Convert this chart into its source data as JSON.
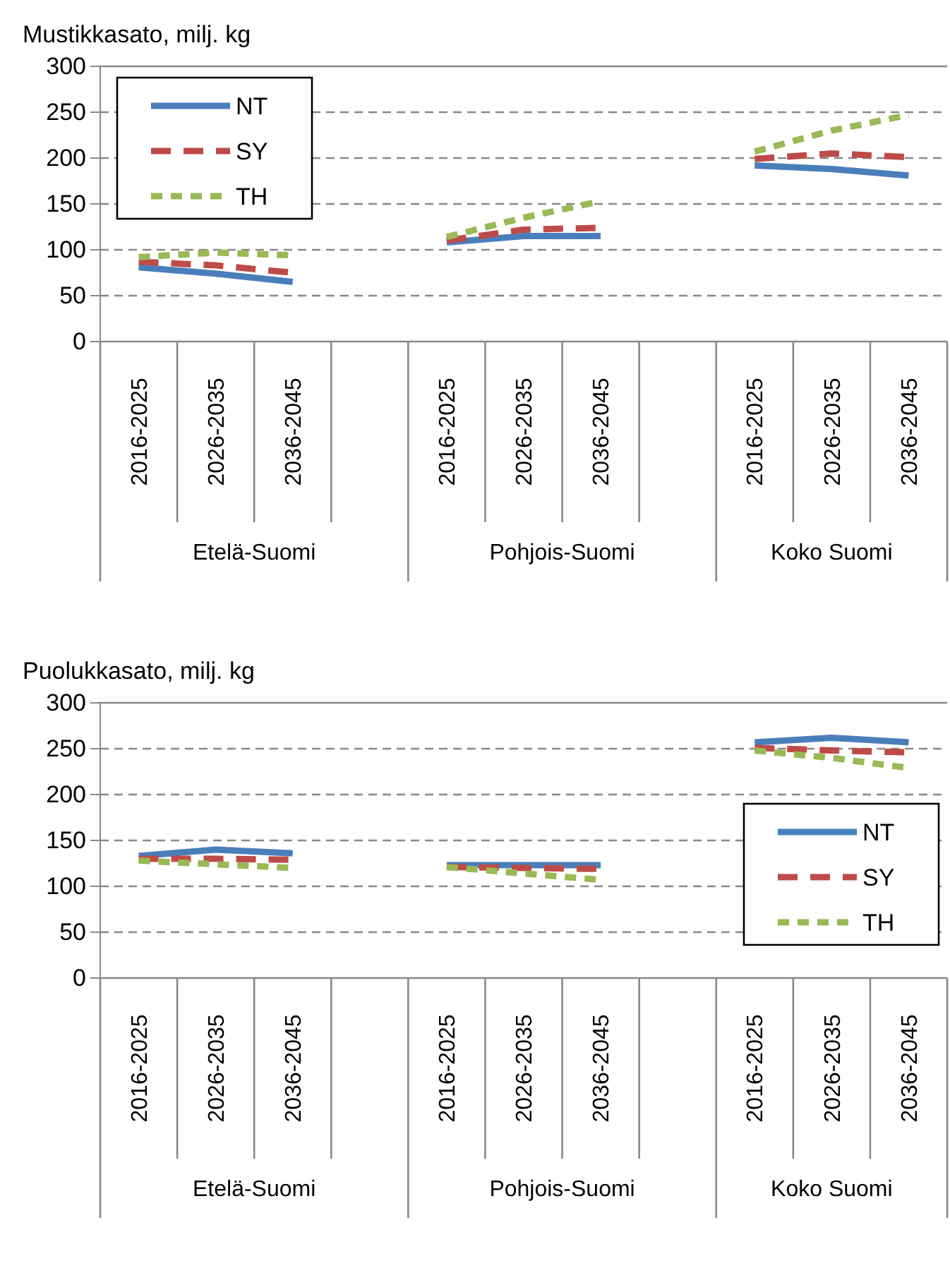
{
  "chart_data": [
    {
      "type": "line",
      "title": "Mustikkasato, milj. kg",
      "categories": [
        "2016-2025",
        "2026-2035",
        "2036-2045",
        null,
        "2016-2025",
        "2026-2035",
        "2036-2045",
        null,
        "2016-2025",
        "2026-2035",
        "2036-2045"
      ],
      "series": [
        {
          "name": "NT",
          "color": "#4a7ebb",
          "line_style": "solid",
          "values": [
            81,
            74,
            65,
            null,
            108,
            115,
            115,
            null,
            192,
            188,
            181
          ]
        },
        {
          "name": "SY",
          "color": "#be4b48",
          "line_style": "dashed",
          "values": [
            87,
            83,
            75,
            null,
            110,
            122,
            124,
            null,
            199,
            205,
            201
          ]
        },
        {
          "name": "TH",
          "color": "#98b954",
          "line_style": "dotted",
          "values": [
            92,
            97,
            94,
            null,
            114,
            135,
            153,
            null,
            207,
            230,
            247
          ]
        }
      ],
      "ylim": [
        0,
        300
      ],
      "yticks": [
        0,
        50,
        100,
        150,
        200,
        250,
        300
      ],
      "grid": "y",
      "legend": "top left",
      "marker": "none",
      "annotations": [
        "Etelä-Suomi",
        "Pohjois-Suomi",
        "Koko Suomi"
      ]
    },
    {
      "type": "line",
      "title": "Puolukkasato, milj. kg",
      "categories": [
        "2016-2025",
        "2026-2035",
        "2036-2045",
        null,
        "2016-2025",
        "2026-2035",
        "2036-2045",
        null,
        "2016-2025",
        "2026-2035",
        "2036-2045"
      ],
      "series": [
        {
          "name": "NT",
          "color": "#4a7ebb",
          "line_style": "solid",
          "values": [
            133,
            140,
            136,
            null,
            123,
            123,
            123,
            null,
            257,
            262,
            257
          ]
        },
        {
          "name": "SY",
          "color": "#be4b48",
          "line_style": "dashed",
          "values": [
            130,
            130,
            129,
            null,
            121,
            120,
            119,
            null,
            251,
            248,
            246
          ]
        },
        {
          "name": "TH",
          "color": "#98b954",
          "line_style": "dotted",
          "values": [
            128,
            124,
            120,
            null,
            121,
            114,
            107,
            null,
            248,
            240,
            229
          ]
        }
      ],
      "ylim": [
        0,
        300
      ],
      "yticks": [
        0,
        50,
        100,
        150,
        200,
        250,
        300
      ],
      "grid": "y",
      "legend": "right",
      "marker": "none",
      "annotations": [
        "Etelä-Suomi",
        "Pohjois-Suomi",
        "Koko Suomi"
      ]
    }
  ]
}
